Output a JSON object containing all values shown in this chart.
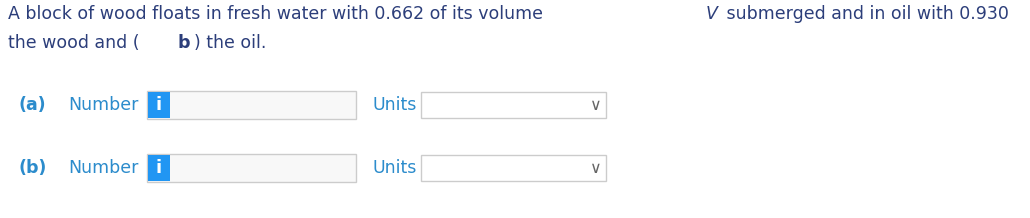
{
  "title_color": "#2c3e7a",
  "background_color": "#ffffff",
  "label_color": "#333333",
  "number_label_color": "#2c8ccc",
  "info_button_color": "#2196F3",
  "info_button_text": "i",
  "input_box_color": "#f8f8f8",
  "input_box_border": "#cccccc",
  "row_a_label": "(a)",
  "row_b_label": "(b)",
  "number_label": "Number",
  "units_label": "Units",
  "font_size_title": 12.5,
  "font_size_labels": 12.5,
  "font_size_info": 13.0
}
